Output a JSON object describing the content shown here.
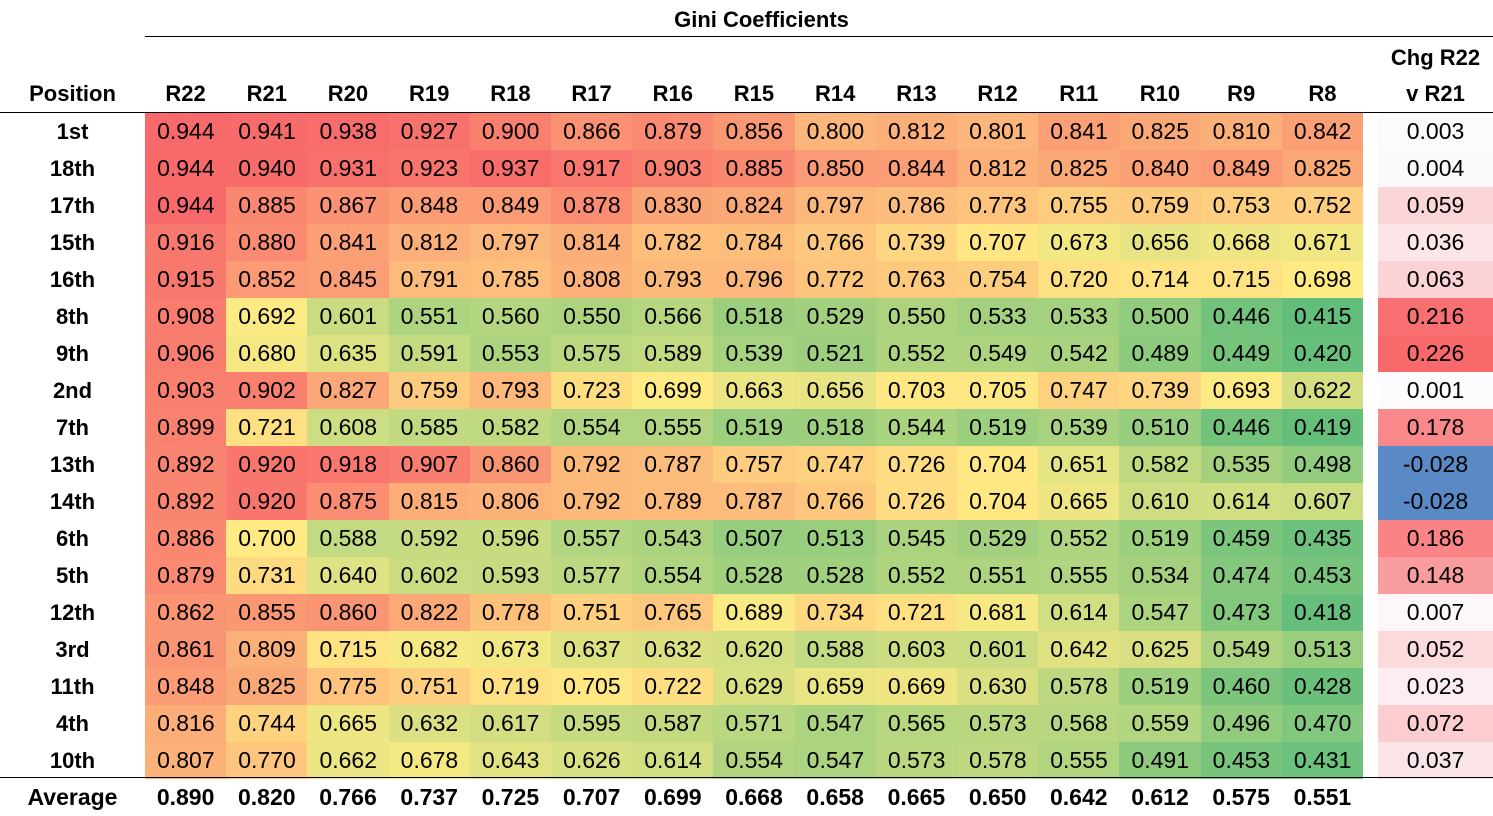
{
  "chart_data": {
    "type": "table",
    "title": "Gini Coefficients",
    "row_header": "Position",
    "columns": [
      "R22",
      "R21",
      "R20",
      "R19",
      "R18",
      "R17",
      "R16",
      "R15",
      "R14",
      "R13",
      "R12",
      "R11",
      "R10",
      "R9",
      "R8"
    ],
    "change_header_line1": "Chg R22",
    "change_header_line2": "v R21",
    "rows": [
      {
        "position": "1st",
        "values": [
          "0.944",
          "0.941",
          "0.938",
          "0.927",
          "0.900",
          "0.866",
          "0.879",
          "0.856",
          "0.800",
          "0.812",
          "0.801",
          "0.841",
          "0.825",
          "0.810",
          "0.842"
        ],
        "change": "0.003"
      },
      {
        "position": "18th",
        "values": [
          "0.944",
          "0.940",
          "0.931",
          "0.923",
          "0.937",
          "0.917",
          "0.903",
          "0.885",
          "0.850",
          "0.844",
          "0.812",
          "0.825",
          "0.840",
          "0.849",
          "0.825"
        ],
        "change": "0.004"
      },
      {
        "position": "17th",
        "values": [
          "0.944",
          "0.885",
          "0.867",
          "0.848",
          "0.849",
          "0.878",
          "0.830",
          "0.824",
          "0.797",
          "0.786",
          "0.773",
          "0.755",
          "0.759",
          "0.753",
          "0.752"
        ],
        "change": "0.059"
      },
      {
        "position": "15th",
        "values": [
          "0.916",
          "0.880",
          "0.841",
          "0.812",
          "0.797",
          "0.814",
          "0.782",
          "0.784",
          "0.766",
          "0.739",
          "0.707",
          "0.673",
          "0.656",
          "0.668",
          "0.671"
        ],
        "change": "0.036"
      },
      {
        "position": "16th",
        "values": [
          "0.915",
          "0.852",
          "0.845",
          "0.791",
          "0.785",
          "0.808",
          "0.793",
          "0.796",
          "0.772",
          "0.763",
          "0.754",
          "0.720",
          "0.714",
          "0.715",
          "0.698"
        ],
        "change": "0.063"
      },
      {
        "position": "8th",
        "values": [
          "0.908",
          "0.692",
          "0.601",
          "0.551",
          "0.560",
          "0.550",
          "0.566",
          "0.518",
          "0.529",
          "0.550",
          "0.533",
          "0.533",
          "0.500",
          "0.446",
          "0.415"
        ],
        "change": "0.216"
      },
      {
        "position": "9th",
        "values": [
          "0.906",
          "0.680",
          "0.635",
          "0.591",
          "0.553",
          "0.575",
          "0.589",
          "0.539",
          "0.521",
          "0.552",
          "0.549",
          "0.542",
          "0.489",
          "0.449",
          "0.420"
        ],
        "change": "0.226"
      },
      {
        "position": "2nd",
        "values": [
          "0.903",
          "0.902",
          "0.827",
          "0.759",
          "0.793",
          "0.723",
          "0.699",
          "0.663",
          "0.656",
          "0.703",
          "0.705",
          "0.747",
          "0.739",
          "0.693",
          "0.622"
        ],
        "change": "0.001"
      },
      {
        "position": "7th",
        "values": [
          "0.899",
          "0.721",
          "0.608",
          "0.585",
          "0.582",
          "0.554",
          "0.555",
          "0.519",
          "0.518",
          "0.544",
          "0.519",
          "0.539",
          "0.510",
          "0.446",
          "0.419"
        ],
        "change": "0.178"
      },
      {
        "position": "13th",
        "values": [
          "0.892",
          "0.920",
          "0.918",
          "0.907",
          "0.860",
          "0.792",
          "0.787",
          "0.757",
          "0.747",
          "0.726",
          "0.704",
          "0.651",
          "0.582",
          "0.535",
          "0.498"
        ],
        "change": "-0.028"
      },
      {
        "position": "14th",
        "values": [
          "0.892",
          "0.920",
          "0.875",
          "0.815",
          "0.806",
          "0.792",
          "0.789",
          "0.787",
          "0.766",
          "0.726",
          "0.704",
          "0.665",
          "0.610",
          "0.614",
          "0.607"
        ],
        "change": "-0.028"
      },
      {
        "position": "6th",
        "values": [
          "0.886",
          "0.700",
          "0.588",
          "0.592",
          "0.596",
          "0.557",
          "0.543",
          "0.507",
          "0.513",
          "0.545",
          "0.529",
          "0.552",
          "0.519",
          "0.459",
          "0.435"
        ],
        "change": "0.186"
      },
      {
        "position": "5th",
        "values": [
          "0.879",
          "0.731",
          "0.640",
          "0.602",
          "0.593",
          "0.577",
          "0.554",
          "0.528",
          "0.528",
          "0.552",
          "0.551",
          "0.555",
          "0.534",
          "0.474",
          "0.453"
        ],
        "change": "0.148"
      },
      {
        "position": "12th",
        "values": [
          "0.862",
          "0.855",
          "0.860",
          "0.822",
          "0.778",
          "0.751",
          "0.765",
          "0.689",
          "0.734",
          "0.721",
          "0.681",
          "0.614",
          "0.547",
          "0.473",
          "0.418"
        ],
        "change": "0.007"
      },
      {
        "position": "3rd",
        "values": [
          "0.861",
          "0.809",
          "0.715",
          "0.682",
          "0.673",
          "0.637",
          "0.632",
          "0.620",
          "0.588",
          "0.603",
          "0.601",
          "0.642",
          "0.625",
          "0.549",
          "0.513"
        ],
        "change": "0.052"
      },
      {
        "position": "11th",
        "values": [
          "0.848",
          "0.825",
          "0.775",
          "0.751",
          "0.719",
          "0.705",
          "0.722",
          "0.629",
          "0.659",
          "0.669",
          "0.630",
          "0.578",
          "0.519",
          "0.460",
          "0.428"
        ],
        "change": "0.023"
      },
      {
        "position": "4th",
        "values": [
          "0.816",
          "0.744",
          "0.665",
          "0.632",
          "0.617",
          "0.595",
          "0.587",
          "0.571",
          "0.547",
          "0.565",
          "0.573",
          "0.568",
          "0.559",
          "0.496",
          "0.470"
        ],
        "change": "0.072"
      },
      {
        "position": "10th",
        "values": [
          "0.807",
          "0.770",
          "0.662",
          "0.678",
          "0.643",
          "0.626",
          "0.614",
          "0.554",
          "0.547",
          "0.573",
          "0.578",
          "0.555",
          "0.491",
          "0.453",
          "0.431"
        ],
        "change": "0.037"
      }
    ],
    "average": {
      "label": "Average",
      "values": [
        "0.890",
        "0.820",
        "0.766",
        "0.737",
        "0.725",
        "0.707",
        "0.699",
        "0.668",
        "0.658",
        "0.665",
        "0.650",
        "0.642",
        "0.612",
        "0.575",
        "0.551"
      ]
    },
    "colors": {
      "heat_low": "#63be7b",
      "heat_mid": "#ffeb84",
      "heat_high": "#f8696b",
      "change_positive": "#f8696b",
      "change_zero": "#fcfcff",
      "change_negative": "#5a8ac6"
    }
  }
}
